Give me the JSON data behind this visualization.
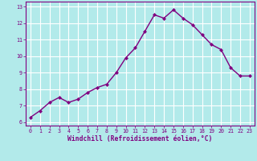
{
  "x": [
    0,
    1,
    2,
    3,
    4,
    5,
    6,
    7,
    8,
    9,
    10,
    11,
    12,
    13,
    14,
    15,
    16,
    17,
    18,
    19,
    20,
    21,
    22,
    23
  ],
  "y": [
    6.3,
    6.7,
    7.2,
    7.5,
    7.2,
    7.4,
    7.8,
    8.1,
    8.3,
    9.0,
    9.9,
    10.5,
    11.5,
    12.5,
    12.3,
    12.8,
    12.3,
    11.9,
    11.3,
    10.7,
    10.4,
    9.3,
    8.8,
    8.8
  ],
  "line_color": "#800080",
  "marker": "D",
  "marker_size": 2.0,
  "bg_color": "#b2eaea",
  "grid_color": "#ffffff",
  "xlabel": "Windchill (Refroidissement éolien,°C)",
  "xlabel_color": "#800080",
  "xlim": [
    -0.5,
    23.5
  ],
  "ylim": [
    5.8,
    13.3
  ],
  "yticks": [
    6,
    7,
    8,
    9,
    10,
    11,
    12,
    13
  ],
  "xticks": [
    0,
    1,
    2,
    3,
    4,
    5,
    6,
    7,
    8,
    9,
    10,
    11,
    12,
    13,
    14,
    15,
    16,
    17,
    18,
    19,
    20,
    21,
    22,
    23
  ],
  "tick_color": "#800080",
  "tick_fontsize": 4.8,
  "xlabel_fontsize": 5.8,
  "spine_color": "#800080",
  "line_width": 1.0
}
